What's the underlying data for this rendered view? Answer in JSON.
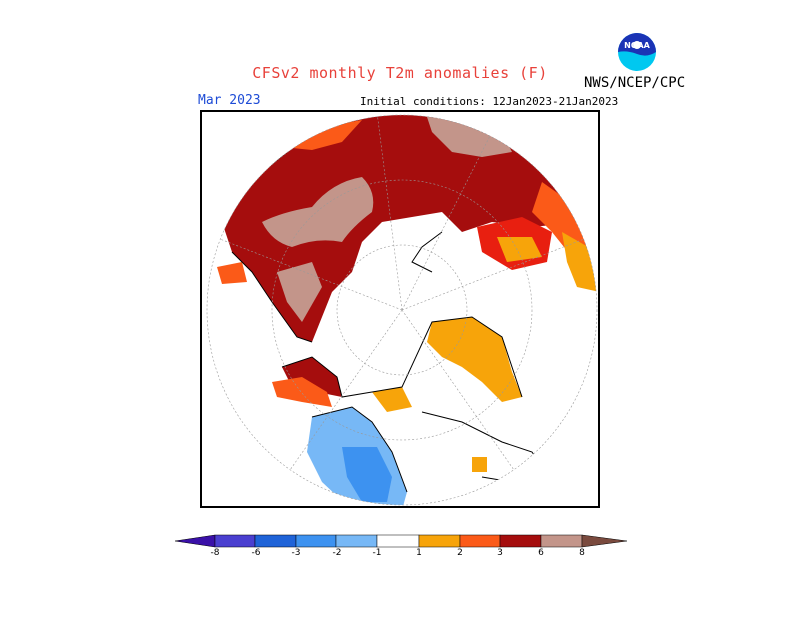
{
  "header": {
    "title": "CFSv2 monthly T2m anomalies (F)",
    "agency": "NWS/NCEP/CPC",
    "logo_text": "NOAA"
  },
  "map": {
    "valid_month": "Mar 2023",
    "initial_conditions": "Initial conditions: 12Jan2023-21Jan2023"
  },
  "legend": {
    "ticks": [
      "-8",
      "-6",
      "-3",
      "-2",
      "-1",
      "1",
      "2",
      "3",
      "6",
      "8"
    ],
    "colors": {
      "below_-8": "#3a10a8",
      "-8_-6": "#4a3fd0",
      "-6_-3": "#1f63d8",
      "-3_-2": "#3d92f0",
      "-2_-1": "#77b8f6",
      "-1_1": "#ffffff",
      "1_2": "#f7a40a",
      "2_3": "#fb5a18",
      "3_6": "#e81f10",
      "6_8": "#a50d0d",
      "above_8": "#c3958a",
      "max": "#7a4a3e"
    }
  }
}
